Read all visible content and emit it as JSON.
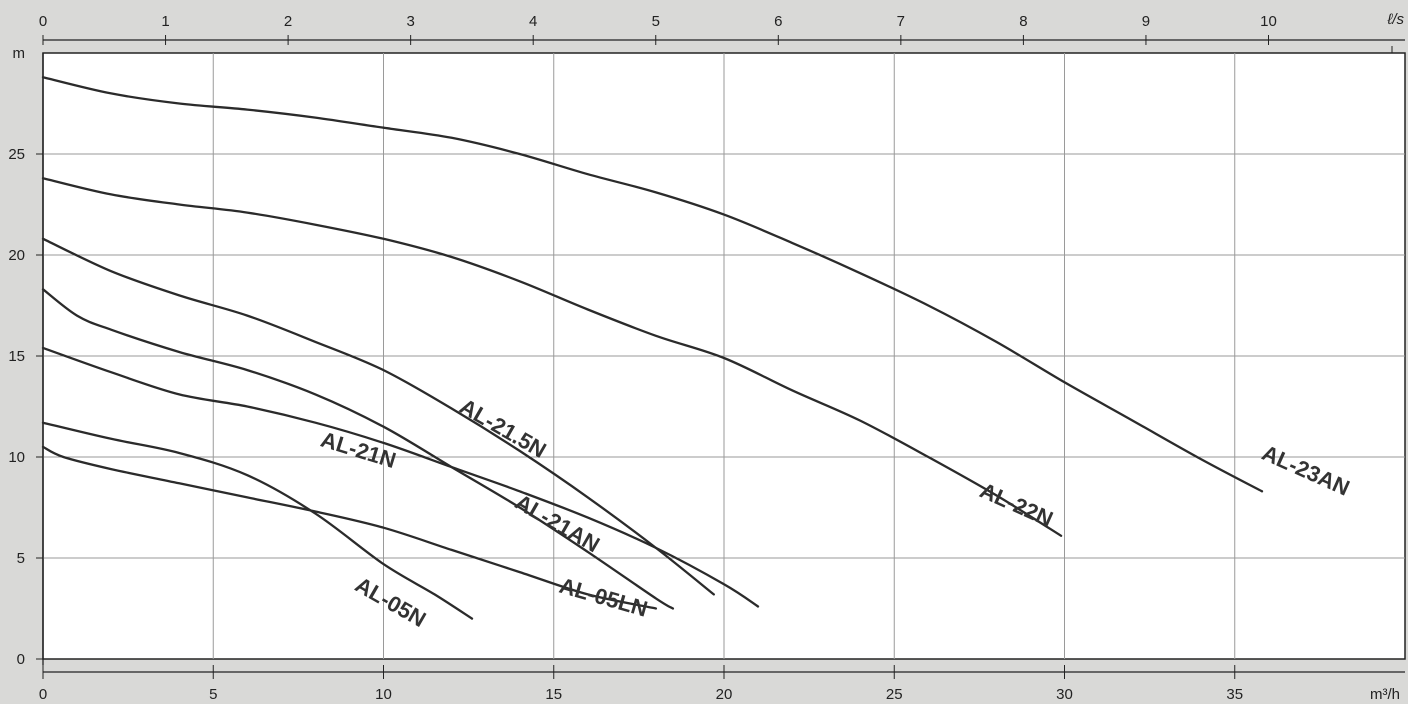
{
  "chart_data": {
    "type": "line",
    "title": "",
    "xlabel": "m³/h",
    "ylabel": "m",
    "x2label": "ℓ/s",
    "xlim": [
      0,
      40
    ],
    "ylim": [
      0,
      30
    ],
    "x2lim": [
      0,
      11.11
    ],
    "x_ticks": [
      0,
      5,
      10,
      15,
      20,
      25,
      30,
      35
    ],
    "y_ticks": [
      0,
      5,
      10,
      15,
      20,
      25
    ],
    "x2_ticks": [
      0,
      1,
      2,
      3,
      4,
      5,
      6,
      7,
      8,
      9,
      10
    ],
    "grid": true,
    "series": [
      {
        "name": "AL-23AN",
        "x": [
          0,
          2,
          4,
          6,
          8,
          10,
          12,
          14,
          16,
          18,
          20,
          22,
          24,
          26,
          28,
          30,
          32,
          34,
          35.8
        ],
        "y": [
          28.8,
          28.0,
          27.5,
          27.2,
          26.8,
          26.3,
          25.8,
          25.0,
          24.0,
          23.1,
          22.0,
          20.6,
          19.1,
          17.5,
          15.7,
          13.7,
          11.8,
          9.9,
          8.3
        ]
      },
      {
        "name": "AL-22N",
        "x": [
          0,
          2,
          4,
          6,
          8,
          10,
          12,
          14,
          16,
          18,
          20,
          22,
          24,
          26,
          28,
          29.9
        ],
        "y": [
          23.8,
          23.0,
          22.5,
          22.1,
          21.5,
          20.8,
          19.9,
          18.7,
          17.3,
          16.0,
          14.9,
          13.3,
          11.8,
          10.0,
          8.1,
          6.1
        ]
      },
      {
        "name": "AL-21.5N",
        "x": [
          0,
          2,
          4,
          6,
          8,
          10,
          12,
          14,
          16,
          18,
          19.7
        ],
        "y": [
          20.8,
          19.2,
          18.0,
          17.0,
          15.7,
          14.3,
          12.4,
          10.3,
          8.0,
          5.5,
          3.2
        ]
      },
      {
        "name": "AL-21AN",
        "x": [
          0,
          1,
          2,
          4,
          6,
          8,
          10,
          12,
          14,
          16,
          18,
          18.5
        ],
        "y": [
          18.3,
          17.0,
          16.3,
          15.2,
          14.3,
          13.1,
          11.5,
          9.5,
          7.5,
          5.3,
          3.0,
          2.5
        ]
      },
      {
        "name": "AL-21N",
        "x": [
          0,
          2,
          4,
          6,
          8,
          10,
          12,
          14,
          16,
          18,
          20,
          21
        ],
        "y": [
          15.4,
          14.2,
          13.1,
          12.5,
          11.7,
          10.7,
          9.5,
          8.3,
          7.0,
          5.5,
          3.7,
          2.6
        ]
      },
      {
        "name": "AL-05LN",
        "x": [
          0,
          0.6,
          2,
          4,
          6,
          8,
          10,
          12,
          14,
          16,
          18
        ],
        "y": [
          10.5,
          10.0,
          9.4,
          8.7,
          8.0,
          7.3,
          6.5,
          5.4,
          4.3,
          3.2,
          2.5
        ]
      },
      {
        "name": "AL-05N",
        "x": [
          0,
          2,
          4,
          6,
          8,
          10,
          11.5,
          12.6
        ],
        "y": [
          11.7,
          10.9,
          10.2,
          9.1,
          7.2,
          4.7,
          3.2,
          2.0
        ]
      }
    ],
    "labels": [
      {
        "text": "AL-23AN",
        "x": 37.0,
        "y": 9.0,
        "angle": 24
      },
      {
        "text": "AL-22N",
        "x": 28.5,
        "y": 7.3,
        "angle": 24
      },
      {
        "text": "AL-21.5N",
        "x": 13.4,
        "y": 11.1,
        "angle": 30
      },
      {
        "text": "AL-21AN",
        "x": 15.0,
        "y": 6.4,
        "angle": 30
      },
      {
        "text": "AL-21N",
        "x": 9.2,
        "y": 10.0,
        "angle": 17
      },
      {
        "text": "AL-05LN",
        "x": 16.4,
        "y": 2.7,
        "angle": 16
      },
      {
        "text": "AL-05N",
        "x": 10.1,
        "y": 2.5,
        "angle": 30
      }
    ]
  }
}
